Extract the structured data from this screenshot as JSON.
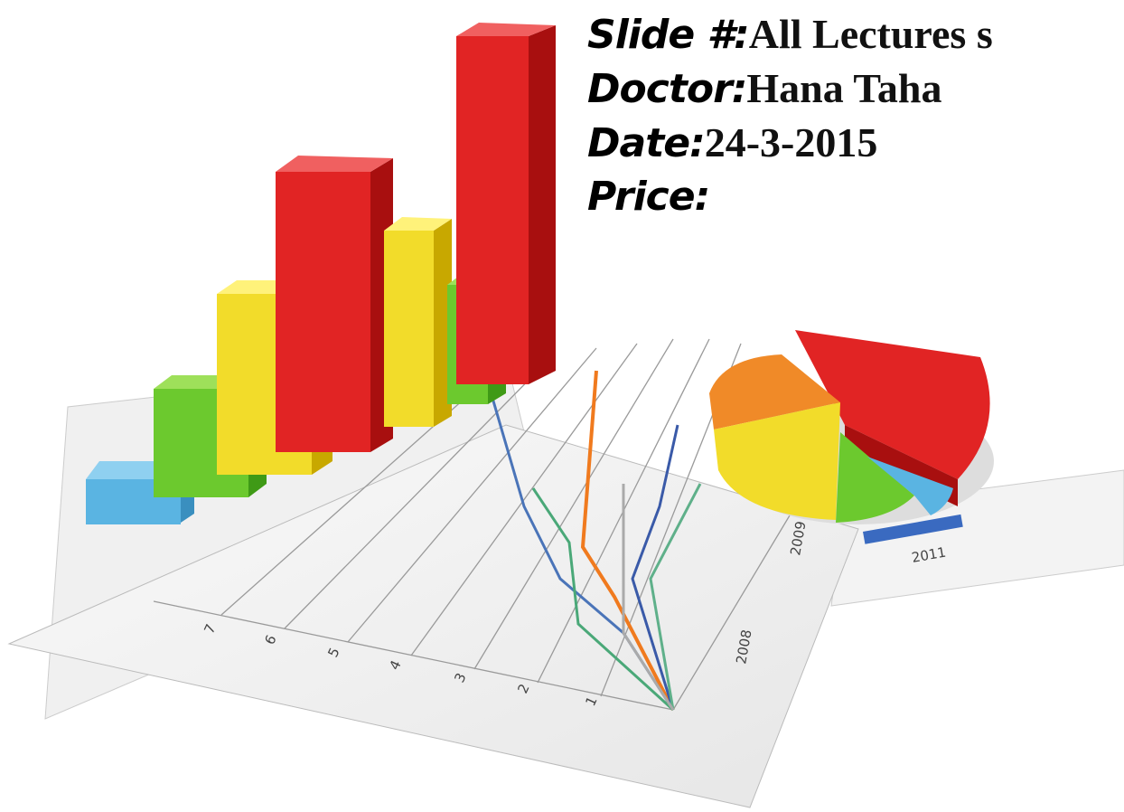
{
  "header": {
    "fields": [
      {
        "label": "Slide #:",
        "value": "All Lectures s"
      },
      {
        "label": "Doctor:",
        "value": "Hana Taha"
      },
      {
        "label": "Date:",
        "value": "24-3-2015"
      },
      {
        "label": "Price:"
      }
    ]
  },
  "illustration": {
    "axis_labels": [
      "7",
      "6",
      "5",
      "4",
      "3",
      "2",
      "1"
    ],
    "year_labels": [
      "2008",
      "2009",
      "2011"
    ]
  }
}
